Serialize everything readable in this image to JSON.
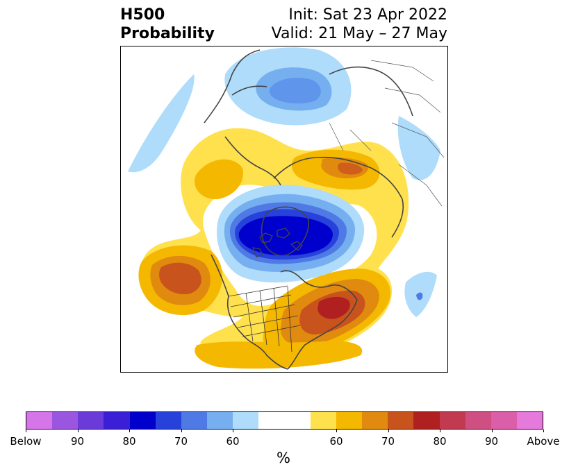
{
  "title": {
    "left_line1": "H500",
    "left_line2": "Probability",
    "init": "Init: Sat 23 Apr 2022",
    "valid": "Valid: 21 May – 27 May"
  },
  "colorbar": {
    "colors": [
      "#d575e8",
      "#9b56e0",
      "#6a3bd9",
      "#3a1fd6",
      "#0000cc",
      "#2741db",
      "#4f7ae6",
      "#76afef",
      "#aedcfa",
      "#ffffff",
      "#ffffff",
      "#ffe14d",
      "#f5b800",
      "#e08a10",
      "#c9531c",
      "#b02020",
      "#c23a50",
      "#cf4f82",
      "#db5ea8",
      "#e579dc"
    ],
    "tick_labels": [
      "Below",
      "90",
      "80",
      "70",
      "60",
      "60",
      "70",
      "80",
      "90",
      "Above"
    ],
    "unit": "%"
  },
  "map": {
    "projection": "polar-stereographic",
    "variable": "500-hPa height probability",
    "anomalies": [
      {
        "region": "North Pole / Arctic",
        "sign": "below",
        "max_level": "80"
      },
      {
        "region": "Scandinavia / Northern Europe",
        "sign": "below",
        "max_level": "60"
      },
      {
        "region": "Eastern United States",
        "sign": "above",
        "max_level": "80"
      },
      {
        "region": "North Pacific",
        "sign": "above",
        "max_level": "70"
      },
      {
        "region": "Siberia",
        "sign": "above",
        "max_level": "70"
      },
      {
        "region": "Western Canada / Alaska",
        "sign": "above",
        "max_level": "60"
      }
    ]
  }
}
